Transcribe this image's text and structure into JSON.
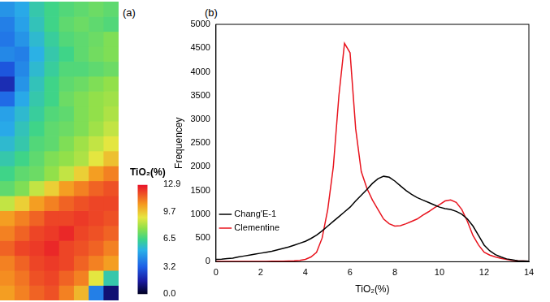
{
  "chart_data": [
    {
      "type": "heatmap",
      "title": "(a)",
      "cells": [
        [
          4.5,
          5.0,
          6.0,
          6.5,
          6.8,
          7.0,
          7.2,
          7.0
        ],
        [
          4.0,
          4.8,
          5.8,
          6.5,
          7.0,
          7.2,
          7.0,
          6.8
        ],
        [
          3.8,
          4.5,
          5.5,
          6.2,
          6.8,
          7.0,
          7.2,
          7.5
        ],
        [
          4.2,
          4.0,
          5.2,
          6.0,
          6.5,
          7.0,
          7.3,
          7.5
        ],
        [
          3.0,
          4.2,
          5.5,
          6.2,
          6.8,
          6.8,
          7.0,
          7.2
        ],
        [
          2.0,
          4.5,
          5.8,
          6.5,
          7.0,
          7.2,
          7.5,
          7.8
        ],
        [
          3.5,
          5.0,
          6.0,
          6.5,
          7.2,
          7.5,
          7.8,
          8.0
        ],
        [
          4.8,
          5.5,
          6.2,
          6.8,
          7.0,
          7.5,
          7.8,
          8.2
        ],
        [
          5.0,
          5.8,
          6.5,
          7.0,
          7.2,
          7.5,
          8.0,
          8.5
        ],
        [
          5.5,
          6.0,
          6.8,
          7.0,
          7.5,
          8.0,
          8.5,
          9.0
        ],
        [
          6.0,
          6.5,
          7.0,
          7.5,
          7.8,
          8.2,
          9.0,
          9.8
        ],
        [
          6.5,
          7.0,
          7.2,
          7.8,
          8.5,
          9.5,
          10.5,
          11.0
        ],
        [
          7.0,
          7.5,
          8.5,
          9.5,
          10.5,
          11.0,
          11.5,
          11.8
        ],
        [
          8.5,
          9.5,
          10.5,
          11.0,
          11.5,
          11.8,
          12.0,
          12.0
        ],
        [
          10.5,
          11.0,
          11.5,
          12.0,
          12.0,
          12.2,
          12.0,
          11.8
        ],
        [
          11.0,
          11.5,
          12.0,
          12.2,
          12.5,
          12.0,
          11.8,
          11.5
        ],
        [
          11.5,
          12.0,
          12.2,
          12.5,
          12.0,
          11.8,
          11.5,
          11.0
        ],
        [
          11.0,
          11.5,
          12.0,
          12.2,
          12.0,
          11.5,
          11.0,
          10.5
        ],
        [
          10.8,
          11.2,
          11.8,
          12.0,
          11.5,
          11.0,
          9.0,
          6.0
        ],
        [
          10.5,
          11.0,
          11.5,
          11.8,
          11.0,
          10.0,
          4.0,
          1.0
        ]
      ],
      "colorbar": {
        "title": "TiO₂(%)",
        "range": [
          0,
          12.9
        ],
        "ticks": [
          {
            "value": 0,
            "label": "0.0"
          },
          3.2,
          6.5,
          9.7,
          12.9
        ]
      }
    },
    {
      "type": "line",
      "title": "(b)",
      "x_label": "TiO₂(%)",
      "y_label": "Frequencey",
      "x": [
        0,
        0.25,
        0.5,
        0.75,
        1,
        1.25,
        1.5,
        1.75,
        2,
        2.25,
        2.5,
        2.75,
        3,
        3.25,
        3.5,
        3.75,
        4,
        4.25,
        4.5,
        4.75,
        5,
        5.25,
        5.5,
        5.75,
        6,
        6.25,
        6.5,
        6.75,
        7,
        7.25,
        7.5,
        7.75,
        8,
        8.25,
        8.5,
        8.75,
        9,
        9.25,
        9.5,
        9.75,
        10,
        10.25,
        10.5,
        10.75,
        11,
        11.25,
        11.5,
        11.75,
        12,
        12.25,
        12.5,
        12.75,
        13,
        13.25,
        13.5,
        13.75,
        14
      ],
      "series": [
        {
          "name": "Chang'E-1",
          "color": "#000000",
          "values": [
            50,
            55,
            65,
            75,
            100,
            120,
            140,
            160,
            180,
            200,
            220,
            250,
            280,
            310,
            350,
            390,
            430,
            490,
            560,
            650,
            750,
            850,
            950,
            1050,
            1150,
            1280,
            1400,
            1520,
            1650,
            1750,
            1800,
            1780,
            1700,
            1600,
            1500,
            1420,
            1350,
            1300,
            1250,
            1200,
            1150,
            1120,
            1100,
            1060,
            1000,
            900,
            750,
            550,
            350,
            230,
            150,
            100,
            60,
            40,
            20,
            15,
            10
          ]
        },
        {
          "name": "Clementine",
          "color": "#e8141e",
          "values": [
            5,
            5,
            5,
            5,
            5,
            5,
            5,
            5,
            5,
            5,
            10,
            10,
            10,
            15,
            20,
            30,
            50,
            100,
            200,
            500,
            1100,
            2000,
            3500,
            4600,
            4400,
            2800,
            1900,
            1550,
            1300,
            1100,
            900,
            800,
            750,
            760,
            800,
            850,
            900,
            980,
            1050,
            1130,
            1200,
            1280,
            1300,
            1250,
            1100,
            850,
            550,
            350,
            200,
            140,
            100,
            70,
            50,
            30,
            20,
            15,
            10
          ]
        }
      ],
      "xlim": [
        0,
        14
      ],
      "xticks": [
        0,
        2,
        4,
        6,
        8,
        10,
        12,
        14
      ],
      "ylim": [
        0,
        5000
      ],
      "yticks": [
        0,
        500,
        1000,
        1500,
        2000,
        2500,
        3000,
        3500,
        4000,
        4500,
        5000
      ],
      "grid": false,
      "legend": "upper right"
    }
  ]
}
